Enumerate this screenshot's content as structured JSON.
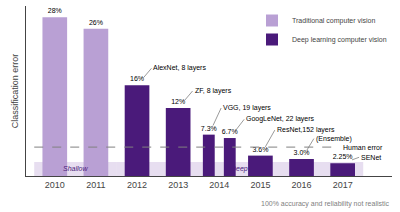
{
  "chart_data": {
    "type": "bar",
    "x": [
      2010,
      2011,
      2012,
      2013,
      2014,
      2014,
      2015,
      2016,
      2017
    ],
    "series": [
      {
        "name": "Traditional computer vision",
        "color": "#b9a0d4",
        "values": [
          28,
          26,
          null,
          null,
          null,
          null,
          null,
          null,
          null
        ],
        "value_labels": [
          "28%",
          "26%",
          null,
          null,
          null,
          null,
          null,
          null,
          null
        ],
        "band": "Shallow"
      },
      {
        "name": "Deep learning computer vision",
        "color": "#4a1a7a",
        "values": [
          null,
          null,
          16,
          12,
          7.3,
          6.7,
          3.6,
          3.0,
          2.25
        ],
        "value_labels": [
          null,
          null,
          "16%",
          "12%",
          "7.3%",
          "6.7%",
          "3.6%",
          "3.0%",
          "2.25%"
        ],
        "band": "Deep"
      }
    ],
    "ylabel": "Classification error",
    "xlim": [
      2009.3,
      2018.2
    ],
    "xticks": [
      2010,
      2011,
      2012,
      2013,
      2014,
      2015,
      2016,
      2017
    ],
    "ylim": [
      0,
      30
    ],
    "grid": false,
    "legend": "upper right",
    "data_labels": true,
    "tick_labels": "x",
    "reference_line": {
      "value": 5.1,
      "label": "Human error"
    },
    "annotations": [
      {
        "text": "AlexNet, 8 layers",
        "x": 2012,
        "y": 16
      },
      {
        "text": "ZF, 8 layers",
        "x": 2013,
        "y": 12
      },
      {
        "text": "VGG, 19 layers",
        "x": 2014,
        "y": 7.3
      },
      {
        "text": "GoogLeNet, 22 layers",
        "x": 2014,
        "y": 6.7
      },
      {
        "text": "ResNet,152 layers",
        "x": 2015,
        "y": 3.6
      },
      {
        "text": "(Ensemble)",
        "x": 2016,
        "y": 3.0
      },
      {
        "text": "SENet",
        "x": 2017,
        "y": 2.25
      },
      {
        "text": "100% accuracy and reliability not realistic"
      }
    ]
  }
}
